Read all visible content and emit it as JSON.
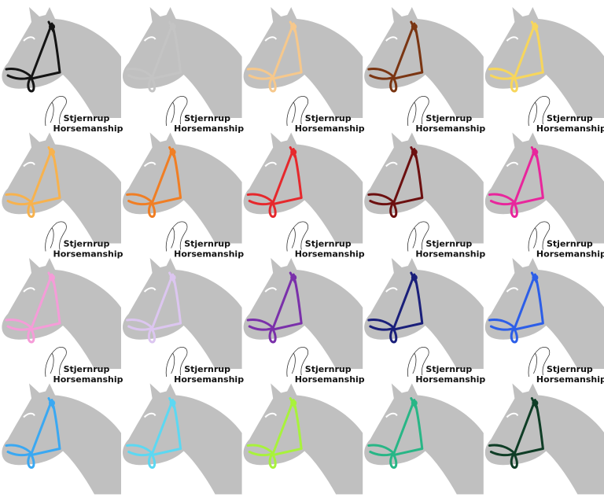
{
  "logo": {
    "line1": "Stjernrup",
    "line2": "Horsemanship"
  },
  "tiles": [
    {
      "color": "#141414",
      "logo": true
    },
    {
      "color": "#c4c4c4",
      "logo": true
    },
    {
      "color": "#f6c88c",
      "logo": true
    },
    {
      "color": "#7a3512",
      "logo": true
    },
    {
      "color": "#f7d65c",
      "logo": true
    },
    {
      "color": "#f7b24e",
      "logo": true
    },
    {
      "color": "#f07e24",
      "logo": true
    },
    {
      "color": "#e6282c",
      "logo": true
    },
    {
      "color": "#6c1010",
      "logo": true
    },
    {
      "color": "#e8269c",
      "logo": true
    },
    {
      "color": "#f59cd8",
      "logo": true
    },
    {
      "color": "#dcc6f0",
      "logo": true
    },
    {
      "color": "#7a30aa",
      "logo": true
    },
    {
      "color": "#1a1f7a",
      "logo": true
    },
    {
      "color": "#2c5ee8",
      "logo": true
    },
    {
      "color": "#3aa8f2",
      "logo": false
    },
    {
      "color": "#5cd8f2",
      "logo": false
    },
    {
      "color": "#a8f23c",
      "logo": false
    },
    {
      "color": "#28b686",
      "logo": false
    },
    {
      "color": "#0f3d26",
      "logo": false
    }
  ]
}
